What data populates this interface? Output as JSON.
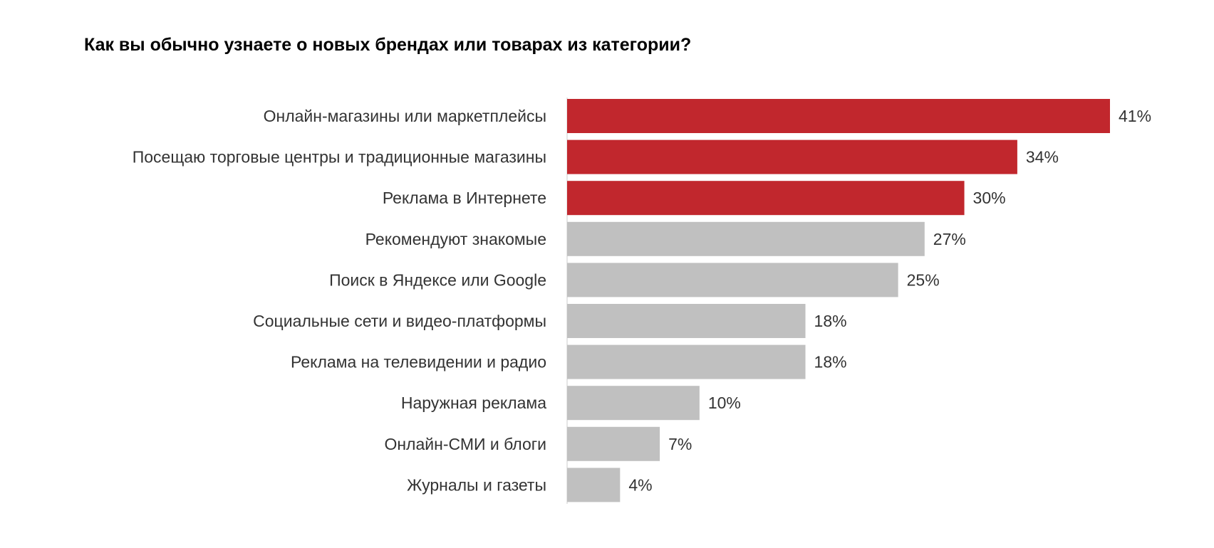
{
  "chart_data": {
    "type": "bar",
    "orientation": "horizontal",
    "title": "Как вы обычно узнаете о новых брендах или товарах из категории?",
    "categories": [
      "Онлайн-магазины или маркетплейсы",
      "Посещаю торговые центры и традиционные магазины",
      "Реклама в Интернете",
      "Рекомендуют знакомые",
      "Поиск в Яндексе или Google",
      "Социальные сети и видео-платформы",
      "Реклама на телевидении и радио",
      "Наружная реклама",
      "Онлайн-СМИ и блоги",
      "Журналы и газеты"
    ],
    "values": [
      41,
      34,
      30,
      27,
      25,
      18,
      18,
      10,
      7,
      4
    ],
    "value_labels": [
      "41%",
      "34%",
      "30%",
      "27%",
      "25%",
      "18%",
      "18%",
      "10%",
      "7%",
      "4%"
    ],
    "highlight_count": 3,
    "colors": {
      "highlight": "#c1272d",
      "default": "#c0c0c0",
      "axis": "#cccccc"
    },
    "xlim": [
      0,
      41
    ],
    "grid": false,
    "legend": "none"
  }
}
